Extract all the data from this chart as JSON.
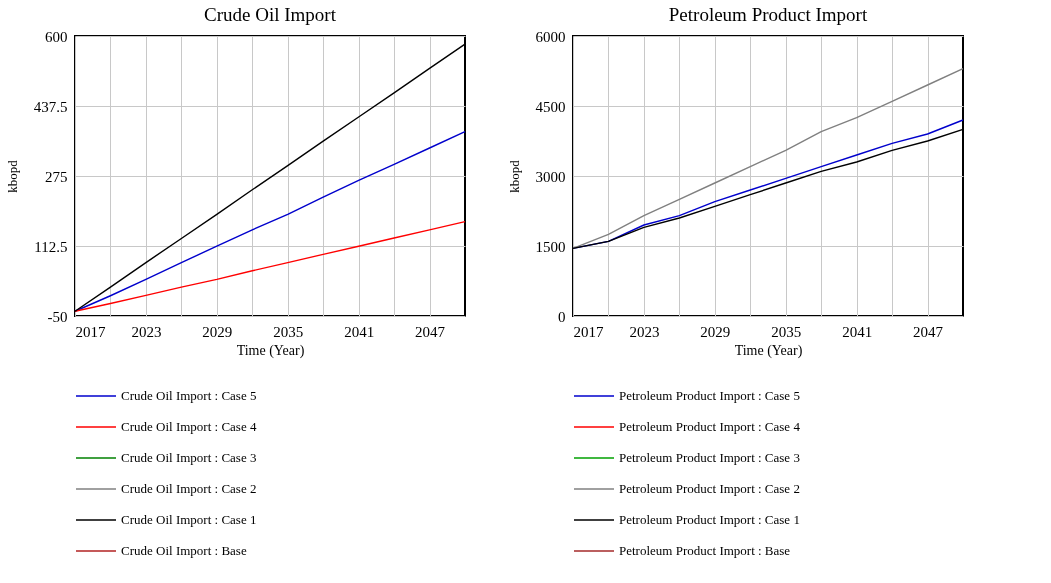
{
  "chart_data": [
    {
      "type": "line",
      "title": "Crude Oil Import",
      "xlabel": "Time (Year)",
      "ylabel": "kbopd",
      "legend": "bottom",
      "grid": true,
      "line_style": "solid",
      "marker": "none",
      "x": [
        2017,
        2020,
        2023,
        2026,
        2029,
        2032,
        2035,
        2038,
        2041,
        2044,
        2047,
        2050
      ],
      "xlim": [
        2017,
        2050
      ],
      "xticks": [
        2017,
        {
          "value": 2020,
          "label": null
        },
        2023,
        {
          "value": 2026,
          "label": null
        },
        2029,
        {
          "value": 2032,
          "label": null
        },
        2035,
        {
          "value": 2038,
          "label": null
        },
        2041,
        {
          "value": 2044,
          "label": null
        },
        2047
      ],
      "ylim": [
        -50,
        600
      ],
      "yticks": [
        -50,
        112.5,
        275,
        437.5,
        600
      ],
      "series": [
        {
          "name": "Crude Oil Import : Case 5",
          "color": "#0000cc",
          "values": [
            -39,
            -3,
            35,
            74,
            112,
            150,
            186,
            226,
            265,
            302,
            340,
            378
          ]
        },
        {
          "name": "Crude Oil Import : Case 4",
          "color": "#ff0000",
          "values": [
            -39,
            -21,
            -2,
            17,
            35,
            55,
            74,
            93,
            112,
            131,
            150,
            169
          ]
        },
        {
          "name": "Crude Oil Import : Case 3",
          "color": "#008000",
          "values": [
            null,
            null,
            null,
            null,
            null,
            null,
            null,
            null,
            null,
            null,
            null,
            null
          ]
        },
        {
          "name": "Crude Oil Import : Case 2",
          "color": "#808080",
          "values": [
            null,
            null,
            null,
            null,
            null,
            null,
            null,
            null,
            null,
            null,
            null,
            null
          ]
        },
        {
          "name": "Crude Oil Import : Case 1",
          "color": "#000000",
          "values": [
            -39,
            17,
            74,
            130,
            186,
            243,
            299,
            356,
            412,
            468,
            525,
            581
          ]
        },
        {
          "name": "Crude Oil Import : Base",
          "color": "#b22222",
          "values": [
            null,
            null,
            null,
            null,
            null,
            null,
            null,
            null,
            null,
            null,
            null,
            null
          ]
        }
      ]
    },
    {
      "type": "line",
      "title": "Petroleum Product Import",
      "xlabel": "Time (Year)",
      "ylabel": "kbopd",
      "legend": "bottom",
      "grid": true,
      "line_style": "solid",
      "marker": "none",
      "x": [
        2017,
        2020,
        2023,
        2026,
        2029,
        2032,
        2035,
        2038,
        2041,
        2044,
        2047,
        2050
      ],
      "xlim": [
        2017,
        2050
      ],
      "xticks": [
        2017,
        {
          "value": 2020,
          "label": null
        },
        2023,
        {
          "value": 2026,
          "label": null
        },
        2029,
        {
          "value": 2032,
          "label": null
        },
        2035,
        {
          "value": 2038,
          "label": null
        },
        2041,
        {
          "value": 2044,
          "label": null
        },
        2047
      ],
      "ylim": [
        0,
        6000
      ],
      "yticks": [
        0,
        1500,
        3000,
        4500,
        6000
      ],
      "series": [
        {
          "name": "Petroleum Product Import : Case 5",
          "color": "#0000cc",
          "values": [
            1450,
            1600,
            1950,
            2150,
            2450,
            2700,
            2950,
            3200,
            3450,
            3700,
            3900,
            4200
          ]
        },
        {
          "name": "Petroleum Product Import : Case 4",
          "color": "#ff0000",
          "values": [
            null,
            null,
            null,
            null,
            null,
            null,
            null,
            null,
            null,
            null,
            null,
            null
          ]
        },
        {
          "name": "Petroleum Product Import : Case 3",
          "color": "#00a000",
          "values": [
            null,
            null,
            null,
            null,
            null,
            null,
            null,
            null,
            null,
            null,
            null,
            null
          ]
        },
        {
          "name": "Petroleum Product Import : Case 2",
          "color": "#808080",
          "values": [
            1450,
            1750,
            2150,
            2500,
            2850,
            3200,
            3550,
            3950,
            4250,
            4600,
            4950,
            5300
          ]
        },
        {
          "name": "Petroleum Product Import : Case 1",
          "color": "#000000",
          "values": [
            1450,
            1600,
            1900,
            2100,
            2350,
            2600,
            2850,
            3100,
            3300,
            3550,
            3750,
            4000
          ]
        },
        {
          "name": "Petroleum Product Import : Base",
          "color": "#a52a2a",
          "values": [
            null,
            null,
            null,
            null,
            null,
            null,
            null,
            null,
            null,
            null,
            null,
            null
          ]
        }
      ]
    }
  ]
}
